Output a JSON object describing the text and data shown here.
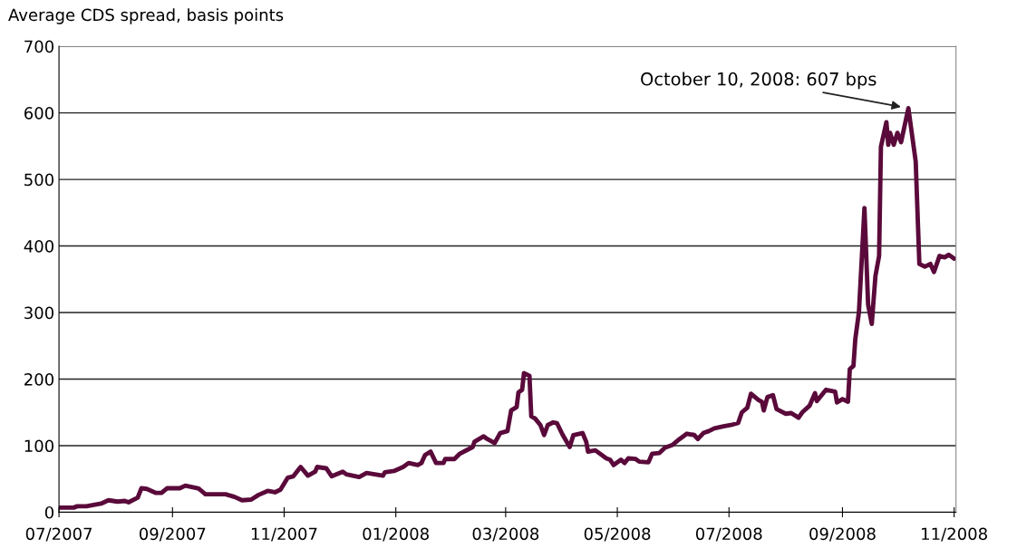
{
  "chart_data": {
    "type": "line",
    "ylabel": "Average CDS spread, basis points",
    "annotations": [
      {
        "text": "October 10, 2008: 607 bps",
        "x": "2008-10-07",
        "y": 607
      }
    ],
    "x": [
      "2007-07-01",
      "2007-07-09",
      "2007-07-11",
      "2007-07-16",
      "2007-07-24",
      "2007-07-28",
      "2007-08-02",
      "2007-08-06",
      "2007-08-08",
      "2007-08-13",
      "2007-08-15",
      "2007-08-18",
      "2007-08-23",
      "2007-08-26",
      "2007-08-29",
      "2007-09-05",
      "2007-09-08",
      "2007-09-15",
      "2007-09-16",
      "2007-09-19",
      "2007-09-30",
      "2007-10-05",
      "2007-10-09",
      "2007-10-14",
      "2007-10-18",
      "2007-10-23",
      "2007-10-27",
      "2007-10-30",
      "2007-11-03",
      "2007-11-06",
      "2007-11-10",
      "2007-11-14",
      "2007-11-18",
      "2007-11-19",
      "2007-11-24",
      "2007-11-27",
      "2007-12-03",
      "2007-12-05",
      "2007-12-12",
      "2007-12-16",
      "2007-12-25",
      "2007-12-26",
      "2007-12-31",
      "2008-01-05",
      "2008-01-08",
      "2008-01-13",
      "2008-01-15",
      "2008-01-17",
      "2008-01-20",
      "2008-01-23",
      "2008-01-27",
      "2008-01-28",
      "2008-02-02",
      "2008-02-05",
      "2008-02-12",
      "2008-02-13",
      "2008-02-18",
      "2008-02-20",
      "2008-02-24",
      "2008-02-27",
      "2008-03-02",
      "2008-03-04",
      "2008-03-07",
      "2008-03-08",
      "2008-03-10",
      "2008-03-11",
      "2008-03-14",
      "2008-03-15",
      "2008-03-17",
      "2008-03-20",
      "2008-03-22",
      "2008-03-24",
      "2008-03-27",
      "2008-03-29",
      "2008-04-01",
      "2008-04-05",
      "2008-04-07",
      "2008-04-12",
      "2008-04-14",
      "2008-04-15",
      "2008-04-19",
      "2008-04-25",
      "2008-04-27",
      "2008-04-29",
      "2008-05-03",
      "2008-05-05",
      "2008-05-07",
      "2008-05-11",
      "2008-05-13",
      "2008-05-18",
      "2008-05-20",
      "2008-05-24",
      "2008-05-27",
      "2008-05-31",
      "2008-06-04",
      "2008-06-08",
      "2008-06-12",
      "2008-06-14",
      "2008-06-17",
      "2008-06-20",
      "2008-06-23",
      "2008-06-28",
      "2008-07-02",
      "2008-07-06",
      "2008-07-08",
      "2008-07-11",
      "2008-07-13",
      "2008-07-17",
      "2008-07-19",
      "2008-07-20",
      "2008-07-22",
      "2008-07-25",
      "2008-07-27",
      "2008-08-01",
      "2008-08-04",
      "2008-08-08",
      "2008-08-10",
      "2008-08-14",
      "2008-08-17",
      "2008-08-18",
      "2008-08-23",
      "2008-08-28",
      "2008-08-29",
      "2008-09-01",
      "2008-09-04",
      "2008-09-05",
      "2008-09-07",
      "2008-09-08",
      "2008-09-10",
      "2008-09-13",
      "2008-09-15",
      "2008-09-17",
      "2008-09-19",
      "2008-09-21",
      "2008-09-22",
      "2008-09-25",
      "2008-09-26",
      "2008-09-27",
      "2008-09-29",
      "2008-10-01",
      "2008-10-03",
      "2008-10-07",
      "2008-10-11",
      "2008-10-13",
      "2008-10-16",
      "2008-10-19",
      "2008-10-21",
      "2008-10-24",
      "2008-10-27",
      "2008-10-29",
      "2008-11-01"
    ],
    "series": [
      {
        "color": "#5a0a3a",
        "values": [
          7,
          7,
          9,
          9,
          13,
          18,
          16,
          17,
          15,
          22,
          36,
          35,
          29,
          29,
          36,
          36,
          40,
          36,
          34,
          27,
          27,
          23,
          18,
          19,
          26,
          32,
          30,
          34,
          52,
          54,
          68,
          55,
          61,
          68,
          66,
          54,
          61,
          57,
          53,
          59,
          55,
          60,
          62,
          68,
          74,
          71,
          74,
          86,
          91,
          74,
          74,
          80,
          80,
          88,
          98,
          106,
          114,
          110,
          104,
          119,
          122,
          153,
          158,
          180,
          184,
          209,
          205,
          144,
          141,
          131,
          116,
          131,
          135,
          134,
          117,
          98,
          116,
          119,
          106,
          91,
          93,
          81,
          79,
          71,
          79,
          74,
          81,
          80,
          76,
          75,
          88,
          89,
          97,
          101,
          110,
          118,
          116,
          110,
          119,
          122,
          126,
          129,
          131,
          134,
          150,
          157,
          178,
          169,
          166,
          153,
          173,
          176,
          155,
          148,
          149,
          142,
          150,
          160,
          179,
          167,
          184,
          181,
          165,
          170,
          166,
          215,
          220,
          260,
          301,
          457,
          312,
          283,
          355,
          385,
          549,
          586,
          552,
          570,
          552,
          570,
          556,
          607,
          527,
          373,
          369,
          373,
          361,
          385,
          383,
          387,
          381
        ]
      }
    ],
    "xlim": [
      "2007-07-01",
      "2008-11-02"
    ],
    "xticks": [
      {
        "value": "2007-07-01",
        "label": "07/2007"
      },
      {
        "value": "2007-09-01",
        "label": "09/2007"
      },
      {
        "value": "2007-11-01",
        "label": "11/2007"
      },
      {
        "value": "2008-01-01",
        "label": "01/2008"
      },
      {
        "value": "2008-03-01",
        "label": "03/2008"
      },
      {
        "value": "2008-05-01",
        "label": "05/2008"
      },
      {
        "value": "2008-07-01",
        "label": "07/2008"
      },
      {
        "value": "2008-09-01",
        "label": "09/2008"
      },
      {
        "value": "2008-11-01",
        "label": "11/2008"
      }
    ],
    "ylim": [
      0,
      700
    ],
    "yticks": [
      0,
      100,
      200,
      300,
      400,
      500,
      600,
      700
    ],
    "grid": "y"
  }
}
